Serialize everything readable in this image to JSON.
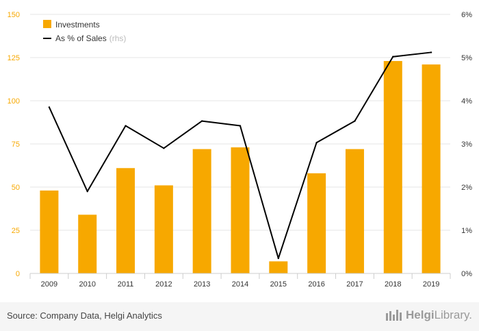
{
  "chart_data": {
    "type": "bar",
    "categories": [
      "2009",
      "2010",
      "2011",
      "2012",
      "2013",
      "2014",
      "2015",
      "2016",
      "2017",
      "2018",
      "2019"
    ],
    "series": [
      {
        "name": "Investments",
        "kind": "bar",
        "axis": "left",
        "color": "#f7a800",
        "values": [
          48,
          34,
          61,
          51,
          72,
          73,
          7,
          58,
          72,
          123,
          121
        ]
      },
      {
        "name": "As % of Sales",
        "kind": "line",
        "axis": "right",
        "color": "#000000",
        "values": [
          3.85,
          1.9,
          3.42,
          2.9,
          3.53,
          3.42,
          0.35,
          3.03,
          3.53,
          5.02,
          5.12
        ]
      }
    ],
    "left_axis": {
      "ylim": [
        0,
        150
      ],
      "ticks": [
        0,
        25,
        50,
        75,
        100,
        125,
        150
      ],
      "tick_color": "#f7a800"
    },
    "right_axis": {
      "ylim": [
        0,
        6
      ],
      "ticks": [
        0,
        1,
        2,
        3,
        4,
        5,
        6
      ],
      "tick_labels": [
        "0%",
        "1%",
        "2%",
        "3%",
        "4%",
        "5%",
        "6%"
      ]
    },
    "legend": {
      "placement": "top-left",
      "items": [
        "Investments",
        "As % of Sales"
      ],
      "rhs_note": "(rhs)"
    },
    "grid": true
  },
  "footer": {
    "source": "Source: Company Data, Helgi Analytics",
    "logo_part1": "Helgi",
    "logo_part2": "Library."
  }
}
